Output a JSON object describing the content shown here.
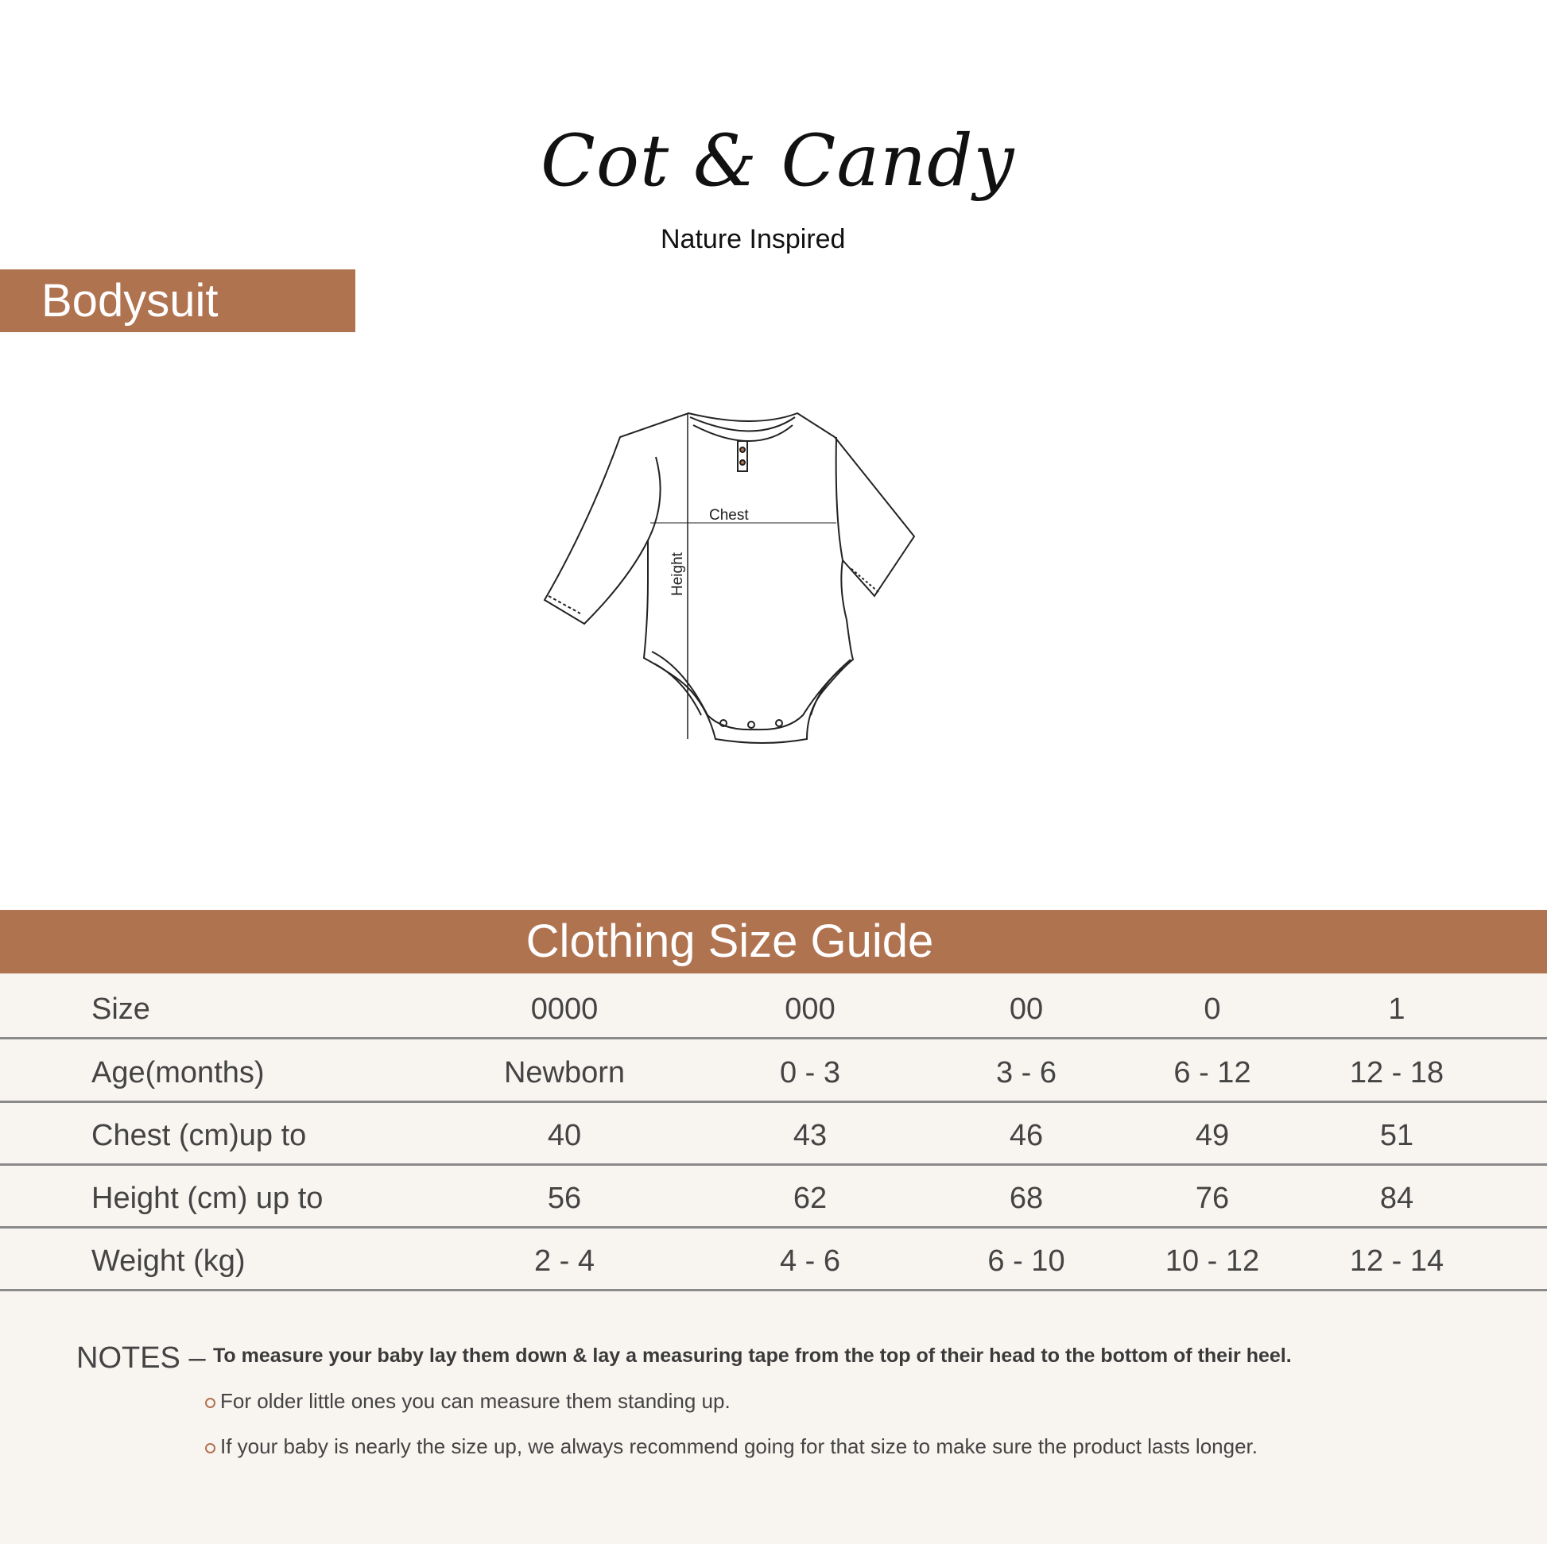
{
  "brand": {
    "logo_text": "Cot & Candy",
    "tagline": "Nature Inspired"
  },
  "product_banner": "Bodysuit",
  "illustration": {
    "chest_label": "Chest",
    "height_label": "Height"
  },
  "size_guide": {
    "title": "Clothing Size Guide",
    "rows": [
      {
        "label": "Size",
        "values": [
          "0000",
          "000",
          "00",
          "0",
          "1"
        ]
      },
      {
        "label": "Age(months)",
        "values": [
          "Newborn",
          "0 - 3",
          "3 - 6",
          "6 - 12",
          "12 - 18"
        ]
      },
      {
        "label": "Chest  (cm)up to",
        "values": [
          "40",
          "43",
          "46",
          "49",
          "51"
        ]
      },
      {
        "label": "Height (cm) up to",
        "values": [
          "56",
          "62",
          "68",
          "76",
          "84"
        ]
      },
      {
        "label": "Weight (kg)",
        "values": [
          "2 - 4",
          "4 - 6",
          "6 - 10",
          "10 - 12",
          "12 - 14"
        ]
      }
    ]
  },
  "notes": {
    "label": "NOTES –",
    "main": "To measure your baby lay them down & lay a measuring tape from the top of their head to the bottom of their heel.",
    "bullets": [
      "For older little ones you can measure them standing up.",
      "If your baby is nearly the size up, we always recommend going for that size to make sure the product lasts longer."
    ]
  },
  "colors": {
    "accent": "#b07350",
    "table_bg": "#f8f4f0",
    "rule": "#8a8a8a"
  }
}
